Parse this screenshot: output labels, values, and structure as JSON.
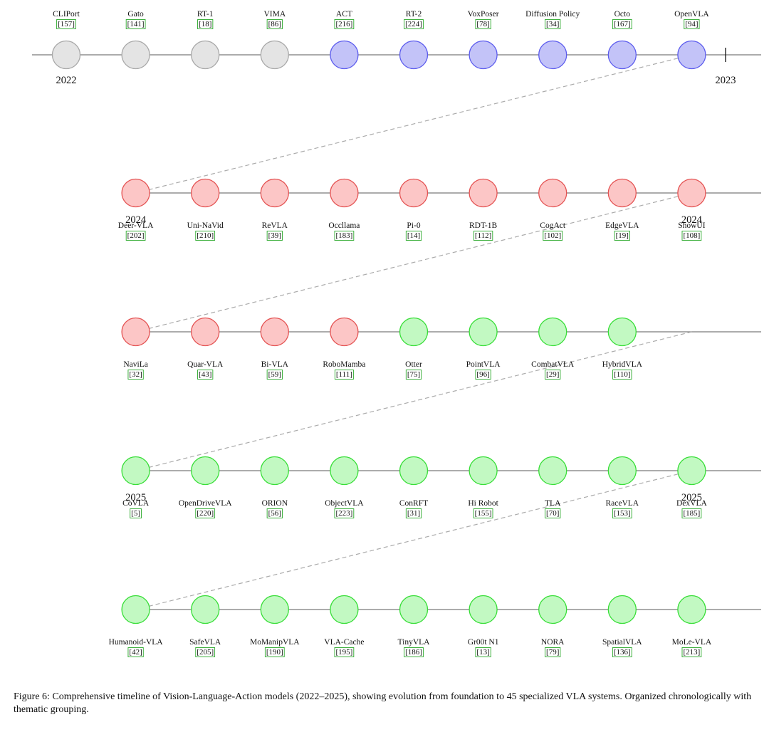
{
  "figure": {
    "caption": "Figure 6: Comprehensive timeline of Vision-Language-Action models (2022–2025), showing evolution from foundation to 45 specialized VLA systems. Organized chronologically with thematic grouping."
  },
  "colors": {
    "foundation": {
      "fill": "#e4e4e4",
      "stroke": "#a8a8a8"
    },
    "blue": {
      "fill": "#c3c3f8",
      "stroke": "#5c5cee"
    },
    "red": {
      "fill": "#fcc6c6",
      "stroke": "#e45353"
    },
    "green": {
      "fill": "#c2f9c2",
      "stroke": "#38de38"
    },
    "cite_box": "#2aa82a",
    "axis": "#7a7a7a",
    "connector": "#ababab"
  },
  "rows": [
    {
      "labels": "above",
      "years": [
        {
          "text": "2022",
          "at": "start"
        },
        {
          "text": "2023",
          "at": "end"
        }
      ],
      "models": [
        {
          "name": "CLIPort",
          "ref": "[157]",
          "group": "foundation"
        },
        {
          "name": "Gato",
          "ref": "[141]",
          "group": "foundation"
        },
        {
          "name": "RT-1",
          "ref": "[18]",
          "group": "foundation"
        },
        {
          "name": "VIMA",
          "ref": "[86]",
          "group": "foundation"
        },
        {
          "name": "ACT",
          "ref": "[216]",
          "group": "blue"
        },
        {
          "name": "RT-2",
          "ref": "[224]",
          "group": "blue"
        },
        {
          "name": "VoxPoser",
          "ref": "[78]",
          "group": "blue"
        },
        {
          "name": "Diffusion Policy",
          "ref": "[34]",
          "group": "blue"
        },
        {
          "name": "Octo",
          "ref": "[167]",
          "group": "blue"
        },
        {
          "name": "OpenVLA",
          "ref": "[94]",
          "group": "blue"
        }
      ]
    },
    {
      "labels": "below",
      "years": [
        {
          "text": "2024",
          "at": "first"
        },
        {
          "text": "2024",
          "at": "last"
        }
      ],
      "models": [
        {
          "name": "Deer-VLA",
          "ref": "[202]",
          "group": "red"
        },
        {
          "name": "Uni-NaVid",
          "ref": "[210]",
          "group": "red"
        },
        {
          "name": "ReVLA",
          "ref": "[39]",
          "group": "red"
        },
        {
          "name": "Occllama",
          "ref": "[183]",
          "group": "red"
        },
        {
          "name": "Pi-0",
          "ref": "[14]",
          "group": "red"
        },
        {
          "name": "RDT-1B",
          "ref": "[112]",
          "group": "red"
        },
        {
          "name": "CogAct",
          "ref": "[102]",
          "group": "red"
        },
        {
          "name": "EdgeVLA",
          "ref": "[19]",
          "group": "red"
        },
        {
          "name": "ShowUI",
          "ref": "[108]",
          "group": "red"
        }
      ]
    },
    {
      "labels": "below",
      "years": [],
      "models": [
        {
          "name": "NaviLa",
          "ref": "[32]",
          "group": "red"
        },
        {
          "name": "Quar-VLA",
          "ref": "[43]",
          "group": "red"
        },
        {
          "name": "Bi-VLA",
          "ref": "[59]",
          "group": "red"
        },
        {
          "name": "RoboMamba",
          "ref": "[111]",
          "group": "red"
        },
        {
          "name": "Otter",
          "ref": "[75]",
          "group": "green"
        },
        {
          "name": "PointVLA",
          "ref": "[96]",
          "group": "green"
        },
        {
          "name": "CombatVLA",
          "ref": "[29]",
          "group": "green"
        },
        {
          "name": "HybridVLA",
          "ref": "[110]",
          "group": "green"
        }
      ]
    },
    {
      "labels": "below",
      "years": [
        {
          "text": "2025",
          "at": "first"
        },
        {
          "text": "2025",
          "at": "last"
        }
      ],
      "models": [
        {
          "name": "CoVLA",
          "ref": "[5]",
          "group": "green"
        },
        {
          "name": "OpenDriveVLA",
          "ref": "[220]",
          "group": "green"
        },
        {
          "name": "ORION",
          "ref": "[56]",
          "group": "green"
        },
        {
          "name": "ObjectVLA",
          "ref": "[223]",
          "group": "green"
        },
        {
          "name": "ConRFT",
          "ref": "[31]",
          "group": "green"
        },
        {
          "name": "Hi Robot",
          "ref": "[155]",
          "group": "green"
        },
        {
          "name": "TLA",
          "ref": "[70]",
          "group": "green"
        },
        {
          "name": "RaceVLA",
          "ref": "[153]",
          "group": "green"
        },
        {
          "name": "DexVLA",
          "ref": "[185]",
          "group": "green"
        }
      ]
    },
    {
      "labels": "below",
      "years": [],
      "models": [
        {
          "name": "Humanoid-VLA",
          "ref": "[42]",
          "group": "green"
        },
        {
          "name": "SafeVLA",
          "ref": "[205]",
          "group": "green"
        },
        {
          "name": "MoManipVLA",
          "ref": "[190]",
          "group": "green"
        },
        {
          "name": "VLA-Cache",
          "ref": "[195]",
          "group": "green"
        },
        {
          "name": "TinyVLA",
          "ref": "[186]",
          "group": "green"
        },
        {
          "name": "Gr00t N1",
          "ref": "[13]",
          "group": "green"
        },
        {
          "name": "NORA",
          "ref": "[79]",
          "group": "green"
        },
        {
          "name": "SpatialVLA",
          "ref": "[136]",
          "group": "green"
        },
        {
          "name": "MoLe-VLA",
          "ref": "[213]",
          "group": "green"
        }
      ]
    }
  ]
}
